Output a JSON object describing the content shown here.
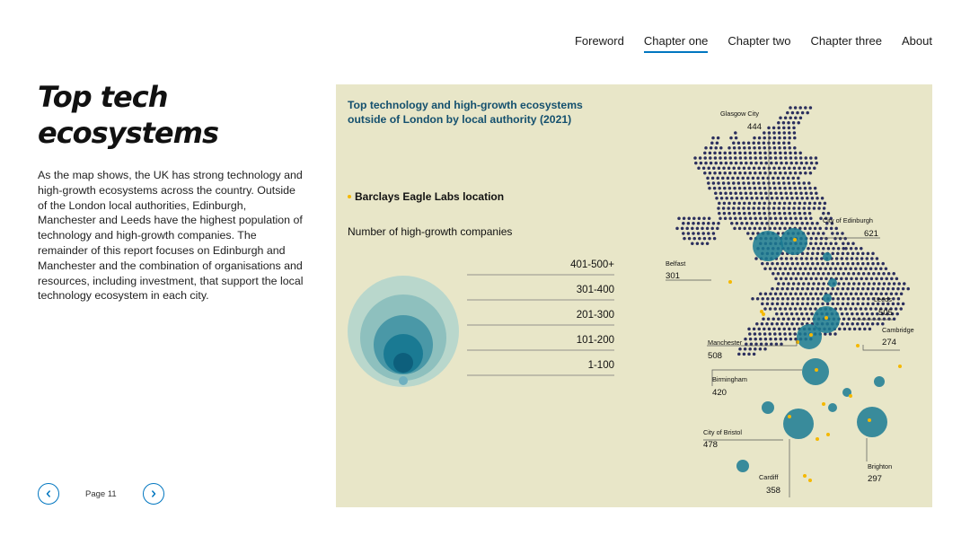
{
  "nav": {
    "items": [
      {
        "label": "Foreword"
      },
      {
        "label": "Chapter one",
        "active": true
      },
      {
        "label": "Chapter two"
      },
      {
        "label": "Chapter three"
      },
      {
        "label": "About"
      }
    ]
  },
  "page": {
    "title_line1": "Top tech",
    "title_line2": "ecosystems",
    "intro": "As the map shows, the UK has strong technology and high-growth ecosystems across the country. Outside of the London local authorities, Edinburgh, Manchester and Leeds have the highest population of technology and high-growth companies. The remainder of this report focuses on Edinburgh and Manchester and the combination of organisations and resources, including investment, that support the local technology ecosystem in each city."
  },
  "pager": {
    "label": "Page 11",
    "prev_icon": "chevron-left-icon",
    "next_icon": "chevron-right-icon"
  },
  "map": {
    "title": "Top technology and high-growth ecosystems outside of London by local authority (2021)",
    "eagle_legend": "Barclays Eagle Labs location",
    "size_legend_title": "Number of high-growth companies",
    "ranges": [
      "401-500+",
      "301-400",
      "201-300",
      "101-200",
      "1-100"
    ],
    "colors": {
      "background": "#e8e6c8",
      "dots": "#2b2f5e",
      "bubble": "#1a7a93",
      "eagle": "#f5b800",
      "title": "#14506e"
    },
    "cities": [
      {
        "name": "Glasgow City",
        "value": "444"
      },
      {
        "name": "City of Edinburgh",
        "value": "621"
      },
      {
        "name": "Belfast",
        "value": "301"
      },
      {
        "name": "Leeds",
        "value": "505"
      },
      {
        "name": "Cambridge",
        "value": "274"
      },
      {
        "name": "Manchester",
        "value": "508"
      },
      {
        "name": "Birmingham",
        "value": "420"
      },
      {
        "name": "City of Bristol",
        "value": "478"
      },
      {
        "name": "Brighton",
        "value": "297"
      },
      {
        "name": "Cardiff",
        "value": "358"
      }
    ]
  }
}
